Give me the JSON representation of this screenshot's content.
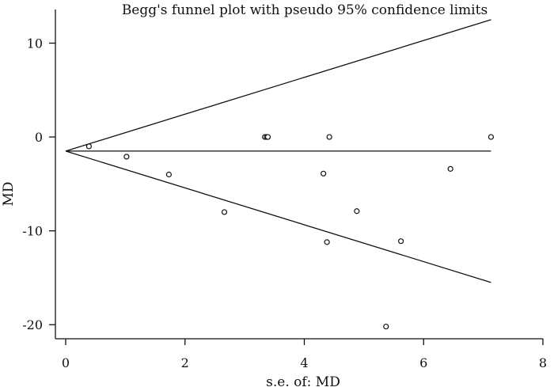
{
  "chart_data": {
    "type": "scatter",
    "title": "Begg's funnel plot with pseudo 95% confidence limits",
    "xlabel": "s.e. of: MD",
    "ylabel": "MD",
    "xlim": [
      0,
      8
    ],
    "ylim": [
      -21.5,
      13.5
    ],
    "xticks": [
      0,
      2,
      4,
      6,
      8
    ],
    "yticks": [
      -20,
      -10,
      0,
      10
    ],
    "points": [
      {
        "x": 0.39,
        "y": -1.0
      },
      {
        "x": 1.02,
        "y": -2.1
      },
      {
        "x": 1.73,
        "y": -4.0
      },
      {
        "x": 2.66,
        "y": -8.0
      },
      {
        "x": 3.34,
        "y": 0.0
      },
      {
        "x": 3.37,
        "y": 0.0
      },
      {
        "x": 3.39,
        "y": 0.0
      },
      {
        "x": 4.32,
        "y": -3.9
      },
      {
        "x": 4.38,
        "y": -11.2
      },
      {
        "x": 4.42,
        "y": 0.0
      },
      {
        "x": 4.88,
        "y": -7.9
      },
      {
        "x": 5.37,
        "y": -20.2
      },
      {
        "x": 5.62,
        "y": -11.1
      },
      {
        "x": 6.45,
        "y": -3.4
      },
      {
        "x": 7.13,
        "y": 0.0
      }
    ],
    "pooled_estimate": -1.5,
    "funnel": {
      "x_start": 0,
      "x_end": 7.13,
      "upper_end": 12.5,
      "lower_end": -15.5
    },
    "grid": false,
    "legend": "none"
  }
}
